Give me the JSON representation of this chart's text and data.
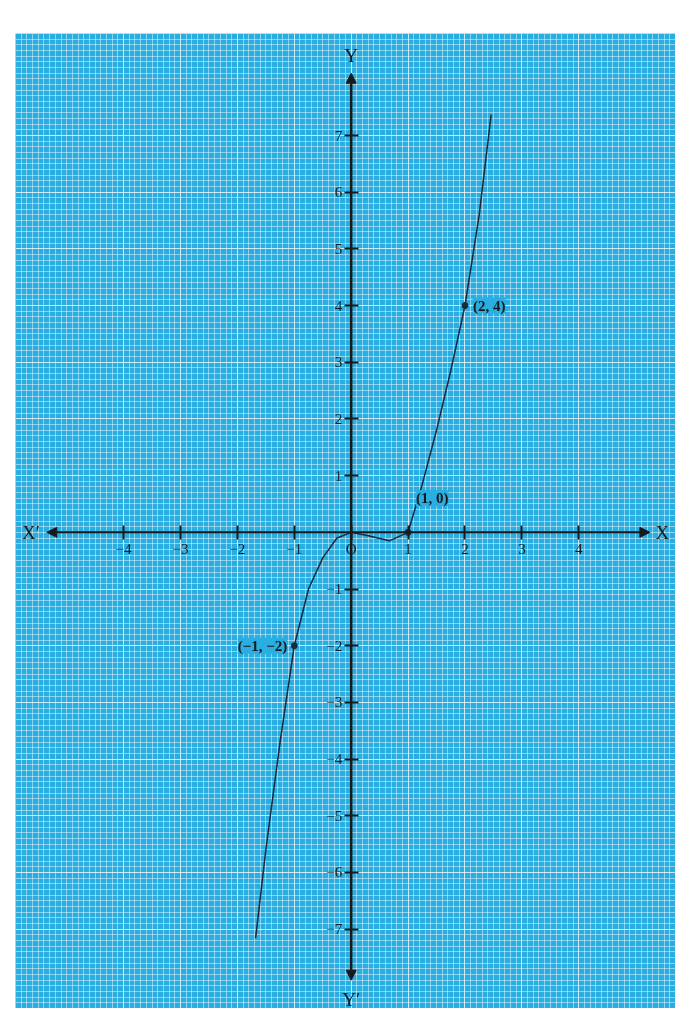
{
  "chart_data": {
    "type": "line",
    "xlim": [
      -5.9,
      5.7
    ],
    "ylim": [
      -8.4,
      8.8
    ],
    "xticks": [
      -4,
      -3,
      -2,
      -1,
      {
        "value": 0,
        "label": "O"
      },
      1,
      2,
      3,
      4
    ],
    "yticks": [
      -7,
      -6,
      -5,
      -4,
      -3,
      -2,
      -1,
      1,
      2,
      3,
      4,
      5,
      6,
      7
    ],
    "xlabel": "X",
    "ylabel": "Y",
    "grid": true,
    "series": [
      {
        "color": "#1a2a3a",
        "x": [
          -1.68,
          -1.5,
          -1.25,
          -1.0,
          -0.75,
          -0.5,
          -0.25,
          0,
          0.3,
          0.67,
          1.0,
          1.25,
          1.5,
          1.75,
          2.0,
          2.25,
          2.46
        ],
        "values": [
          -7.16,
          -5.6,
          -3.7,
          -2.0,
          -1.0,
          -0.45,
          -0.1,
          0,
          -0.06,
          -0.15,
          0,
          0.85,
          1.8,
          2.85,
          4.0,
          5.6,
          7.37
        ]
      },
      {
        "type": "scatter",
        "color": "#1a2a3a",
        "marker": "circle",
        "x": [
          2,
          1,
          -1
        ],
        "values": [
          4,
          0,
          -2
        ]
      }
    ],
    "annotations": [
      {
        "text": "(2, 4)",
        "x": 2,
        "y": 4
      },
      {
        "text": "(1, 0)",
        "x": 1,
        "y": 0
      },
      {
        "text": "(−1, −2)",
        "x": -1,
        "y": -2
      },
      "X′",
      "Y′"
    ]
  }
}
